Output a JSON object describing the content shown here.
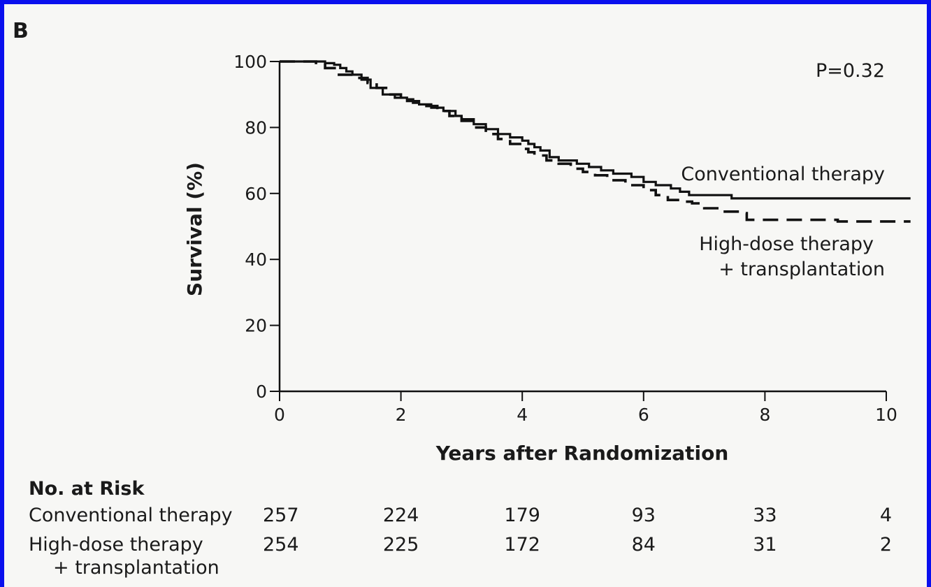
{
  "panel_label": "B",
  "chart_data": {
    "type": "line",
    "title": "",
    "xlabel": "Years after Randomization",
    "ylabel": "Survival (%)",
    "xlim": [
      0,
      10.4
    ],
    "ylim": [
      0,
      100
    ],
    "x_ticks": [
      0,
      2,
      4,
      6,
      8,
      10
    ],
    "y_ticks": [
      0,
      20,
      40,
      60,
      80,
      100
    ],
    "x_tick_labels": [
      "0",
      "2",
      "4",
      "6",
      "8",
      "10"
    ],
    "y_tick_labels": [
      "0",
      "20",
      "40",
      "60",
      "80",
      "100"
    ],
    "p_value_text": "P=0.32",
    "series": [
      {
        "name": "Conventional therapy",
        "label_lines": [
          "Conventional therapy"
        ],
        "style": "solid",
        "step": true,
        "points": [
          [
            0,
            100
          ],
          [
            0.55,
            100
          ],
          [
            0.75,
            99.5
          ],
          [
            0.9,
            99
          ],
          [
            1.0,
            98
          ],
          [
            1.1,
            97
          ],
          [
            1.2,
            96
          ],
          [
            1.35,
            94.5
          ],
          [
            1.5,
            92
          ],
          [
            1.7,
            90
          ],
          [
            1.9,
            89
          ],
          [
            2.1,
            88
          ],
          [
            2.3,
            87
          ],
          [
            2.5,
            86
          ],
          [
            2.7,
            85
          ],
          [
            2.9,
            83.5
          ],
          [
            3.0,
            82.5
          ],
          [
            3.2,
            81
          ],
          [
            3.4,
            79.5
          ],
          [
            3.6,
            78
          ],
          [
            3.8,
            77
          ],
          [
            4.0,
            76
          ],
          [
            4.1,
            75
          ],
          [
            4.2,
            74
          ],
          [
            4.3,
            73
          ],
          [
            4.45,
            71
          ],
          [
            4.6,
            70
          ],
          [
            4.9,
            69
          ],
          [
            5.1,
            68
          ],
          [
            5.3,
            67
          ],
          [
            5.5,
            66
          ],
          [
            5.8,
            65
          ],
          [
            6.0,
            63.5
          ],
          [
            6.2,
            62.5
          ],
          [
            6.45,
            61.5
          ],
          [
            6.6,
            60.5
          ],
          [
            6.75,
            59.5
          ],
          [
            7.2,
            59.5
          ],
          [
            7.45,
            58.5
          ],
          [
            10.4,
            58.5
          ]
        ]
      },
      {
        "name": "High-dose therapy + transplantation",
        "label_lines": [
          "High-dose therapy",
          "+ transplantation"
        ],
        "style": "dashed",
        "step": true,
        "points": [
          [
            0,
            100
          ],
          [
            0.5,
            100
          ],
          [
            0.6,
            99
          ],
          [
            0.75,
            98
          ],
          [
            0.95,
            96
          ],
          [
            1.2,
            95
          ],
          [
            1.45,
            93.5
          ],
          [
            1.6,
            92
          ],
          [
            1.8,
            90
          ],
          [
            2.0,
            88.5
          ],
          [
            2.2,
            87.5
          ],
          [
            2.4,
            86.5
          ],
          [
            2.6,
            85
          ],
          [
            2.8,
            83.5
          ],
          [
            3.0,
            82
          ],
          [
            3.2,
            80
          ],
          [
            3.4,
            78
          ],
          [
            3.6,
            76.5
          ],
          [
            3.8,
            75
          ],
          [
            4.0,
            73.5
          ],
          [
            4.1,
            72.5
          ],
          [
            4.2,
            71.5
          ],
          [
            4.4,
            70
          ],
          [
            4.6,
            69
          ],
          [
            4.8,
            67.5
          ],
          [
            5.0,
            66.5
          ],
          [
            5.2,
            65.5
          ],
          [
            5.4,
            64
          ],
          [
            5.7,
            62.5
          ],
          [
            6.0,
            61
          ],
          [
            6.2,
            59.5
          ],
          [
            6.4,
            58
          ],
          [
            6.6,
            57.5
          ],
          [
            6.8,
            57
          ],
          [
            7.0,
            55.5
          ],
          [
            7.3,
            54.5
          ],
          [
            7.6,
            54
          ],
          [
            7.7,
            52
          ],
          [
            9.2,
            51.5
          ],
          [
            10.4,
            51.5
          ]
        ]
      }
    ]
  },
  "risk_table": {
    "title": "No. at Risk",
    "rows": [
      {
        "label_lines": [
          "Conventional therapy"
        ],
        "values": [
          "257",
          "224",
          "179",
          "93",
          "33",
          "4"
        ]
      },
      {
        "label_lines": [
          "High-dose therapy",
          "+ transplantation"
        ],
        "values": [
          "254",
          "225",
          "172",
          "84",
          "31",
          "2"
        ]
      }
    ]
  }
}
